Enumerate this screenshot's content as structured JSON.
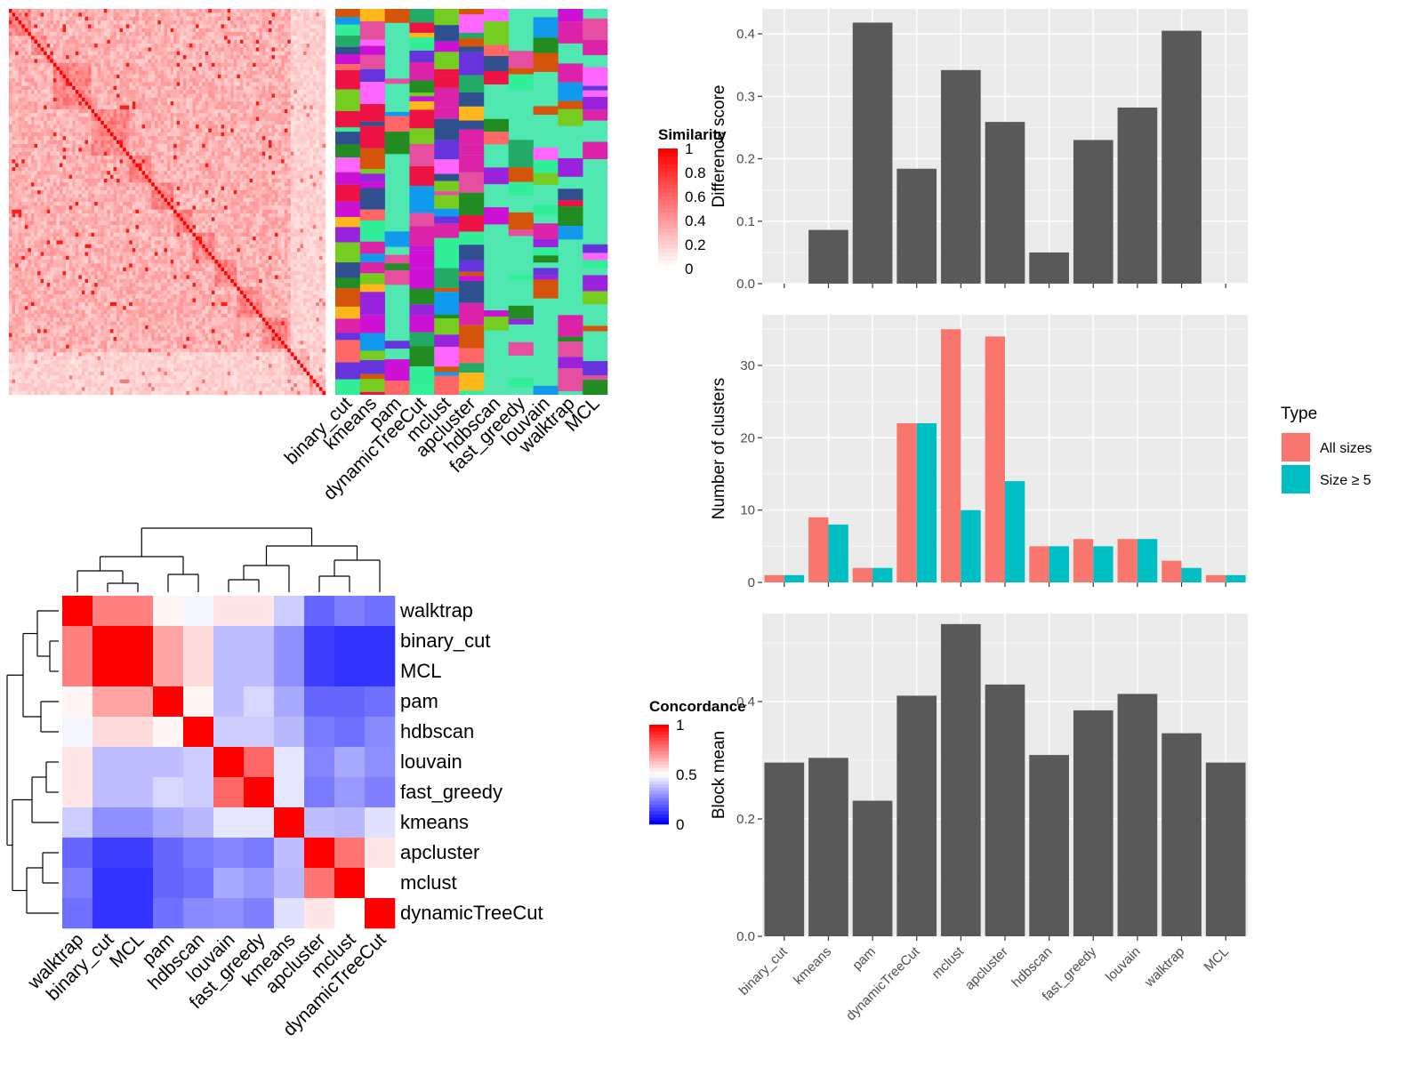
{
  "chart_data": [
    {
      "type": "heatmap",
      "title": "",
      "legend_title": "Similarity",
      "legend_ticks": [
        "0",
        "0.2",
        "0.4",
        "0.6",
        "0.8",
        "1"
      ],
      "annotation_columns": [
        "binary_cut",
        "kmeans",
        "pam",
        "dynamicTreeCut",
        "mclust",
        "apcluster",
        "hdbscan",
        "fast_greedy",
        "louvain",
        "walktrap",
        "MCL"
      ],
      "colors": {
        "low": "#ffffff",
        "high": "#ff0000",
        "background": "#50e8b0"
      }
    },
    {
      "type": "heatmap",
      "title": "",
      "legend_title": "Concordance",
      "legend_ticks": [
        "0",
        "0.5",
        "1"
      ],
      "colors": {
        "low": "#0000ff",
        "mid": "#ffffff",
        "high": "#ff0000"
      },
      "rows": [
        "walktrap",
        "binary_cut",
        "MCL",
        "pam",
        "hdbscan",
        "louvain",
        "fast_greedy",
        "kmeans",
        "apcluster",
        "mclust",
        "dynamicTreeCut"
      ],
      "columns": [
        "walktrap",
        "binary_cut",
        "MCL",
        "pam",
        "hdbscan",
        "louvain",
        "fast_greedy",
        "kmeans",
        "apcluster",
        "mclust",
        "dynamicTreeCut"
      ],
      "values": [
        [
          1.0,
          0.75,
          0.75,
          0.52,
          0.48,
          0.55,
          0.55,
          0.4,
          0.2,
          0.25,
          0.22
        ],
        [
          0.75,
          1.0,
          1.0,
          0.68,
          0.57,
          0.37,
          0.37,
          0.28,
          0.12,
          0.1,
          0.1
        ],
        [
          0.75,
          1.0,
          1.0,
          0.68,
          0.57,
          0.37,
          0.37,
          0.28,
          0.12,
          0.1,
          0.1
        ],
        [
          0.52,
          0.68,
          0.68,
          1.0,
          0.52,
          0.37,
          0.42,
          0.33,
          0.2,
          0.2,
          0.22
        ],
        [
          0.48,
          0.57,
          0.57,
          0.52,
          1.0,
          0.4,
          0.4,
          0.36,
          0.24,
          0.22,
          0.27
        ],
        [
          0.55,
          0.37,
          0.37,
          0.37,
          0.4,
          1.0,
          0.8,
          0.45,
          0.26,
          0.33,
          0.28
        ],
        [
          0.55,
          0.37,
          0.37,
          0.42,
          0.4,
          0.8,
          1.0,
          0.45,
          0.24,
          0.3,
          0.25
        ],
        [
          0.4,
          0.28,
          0.28,
          0.33,
          0.36,
          0.45,
          0.45,
          1.0,
          0.37,
          0.36,
          0.44
        ],
        [
          0.2,
          0.12,
          0.12,
          0.2,
          0.24,
          0.26,
          0.24,
          0.37,
          1.0,
          0.77,
          0.55
        ],
        [
          0.25,
          0.1,
          0.1,
          0.2,
          0.22,
          0.33,
          0.3,
          0.36,
          0.77,
          1.0,
          0.5
        ],
        [
          0.22,
          0.1,
          0.1,
          0.22,
          0.27,
          0.28,
          0.25,
          0.44,
          0.55,
          0.5,
          1.0
        ]
      ]
    },
    {
      "type": "bar",
      "title": "",
      "xlabel": "",
      "ylabel": "Difference score",
      "ylim": [
        0,
        0.44
      ],
      "yticks": [
        "0.0",
        "0.1",
        "0.2",
        "0.3",
        "0.4"
      ],
      "categories": [
        "binary_cut",
        "kmeans",
        "pam",
        "dynamicTreeCut",
        "mclust",
        "apcluster",
        "hdbscan",
        "fast_greedy",
        "louvain",
        "walktrap",
        "MCL"
      ],
      "values": [
        0,
        0.086,
        0.418,
        0.184,
        0.342,
        0.259,
        0.05,
        0.23,
        0.282,
        0.405,
        0
      ]
    },
    {
      "type": "bar",
      "title": "",
      "xlabel": "",
      "ylabel": "Number of clusters",
      "ylim": [
        0,
        37
      ],
      "yticks": [
        "0",
        "10",
        "20",
        "30"
      ],
      "categories": [
        "binary_cut",
        "kmeans",
        "pam",
        "dynamicTreeCut",
        "mclust",
        "apcluster",
        "hdbscan",
        "fast_greedy",
        "louvain",
        "walktrap",
        "MCL"
      ],
      "legend_title": "Type",
      "series": [
        {
          "name": "All sizes",
          "color": "#f8766d",
          "values": [
            1,
            9,
            2,
            22,
            35,
            34,
            5,
            6,
            6,
            3,
            1
          ]
        },
        {
          "name": "Size ≥ 5",
          "color": "#00bfc4",
          "values": [
            1,
            8,
            2,
            22,
            10,
            14,
            5,
            5,
            6,
            2,
            1
          ]
        }
      ]
    },
    {
      "type": "bar",
      "title": "",
      "xlabel": "",
      "ylabel": "Block mean",
      "ylim": [
        0,
        0.55
      ],
      "yticks": [
        "0.0",
        "0.2",
        "0.4"
      ],
      "categories": [
        "binary_cut",
        "kmeans",
        "pam",
        "dynamicTreeCut",
        "mclust",
        "apcluster",
        "hdbscan",
        "fast_greedy",
        "louvain",
        "walktrap",
        "MCL"
      ],
      "values": [
        0.296,
        0.304,
        0.231,
        0.41,
        0.532,
        0.429,
        0.309,
        0.385,
        0.413,
        0.346,
        0.296
      ]
    }
  ]
}
